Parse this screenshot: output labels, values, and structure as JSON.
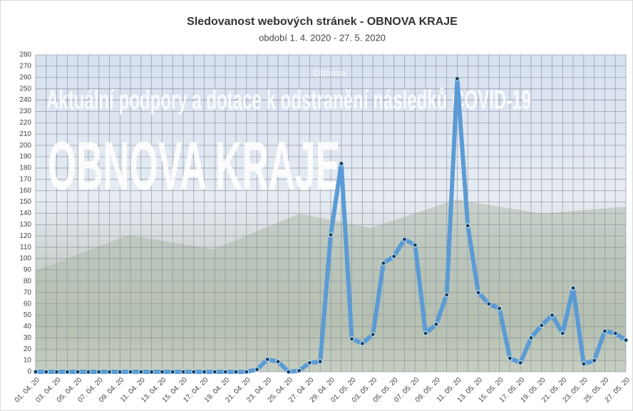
{
  "chart_data": {
    "type": "line",
    "title": "Sledovanost webových stránek - OBNOVA KRAJE",
    "subtitle": "období 1. 4. 2020 - 27. 5. 2020",
    "annotations": [
      "Obnova",
      "Aktuální podpory a dotace k odstranění následků COVID-19",
      "OBNOVA KRAJE"
    ],
    "categories": [
      "01. 04. 20",
      null,
      "03. 04. 20",
      null,
      "05. 04. 20",
      null,
      "07. 04. 20",
      null,
      "09. 04. 20",
      null,
      "11. 04. 20",
      null,
      "13. 04. 20",
      null,
      "15. 04. 20",
      null,
      "17. 04. 20",
      null,
      "19. 04. 20",
      null,
      "21. 04. 20",
      null,
      "23. 04. 20",
      null,
      "25. 04. 20",
      null,
      "27. 04. 20",
      null,
      "29. 04. 20",
      null,
      "01. 05. 20",
      null,
      "03. 05. 20",
      null,
      "05. 05. 20",
      null,
      "07. 05. 20",
      null,
      "09. 05. 20",
      null,
      "11. 05. 20",
      null,
      "13. 05. 20",
      null,
      "15. 05. 20",
      null,
      "17. 05. 20",
      null,
      "19. 05. 20",
      null,
      "21. 05. 20",
      null,
      "23. 05. 20",
      null,
      "25. 05. 20",
      null,
      "27. 05. 20"
    ],
    "values": [
      0,
      0,
      0,
      0,
      0,
      0,
      0,
      0,
      0,
      0,
      0,
      0,
      0,
      0,
      0,
      0,
      0,
      0,
      0,
      0,
      0,
      2,
      11,
      9,
      0,
      1,
      8,
      9,
      121,
      184,
      29,
      25,
      33,
      96,
      102,
      117,
      112,
      34,
      42,
      68,
      259,
      129,
      70,
      60,
      56,
      12,
      8,
      30,
      41,
      50,
      34,
      74,
      7,
      10,
      36,
      34,
      28
    ],
    "color": "#5b9bd5",
    "marker_color": "#1f3b5a",
    "ylim": [
      0,
      280
    ],
    "yticks": [
      0,
      10,
      20,
      30,
      40,
      50,
      60,
      70,
      80,
      90,
      100,
      110,
      120,
      130,
      140,
      150,
      160,
      170,
      180,
      190,
      200,
      210,
      220,
      230,
      240,
      250,
      260,
      270,
      280
    ],
    "grid": true
  }
}
